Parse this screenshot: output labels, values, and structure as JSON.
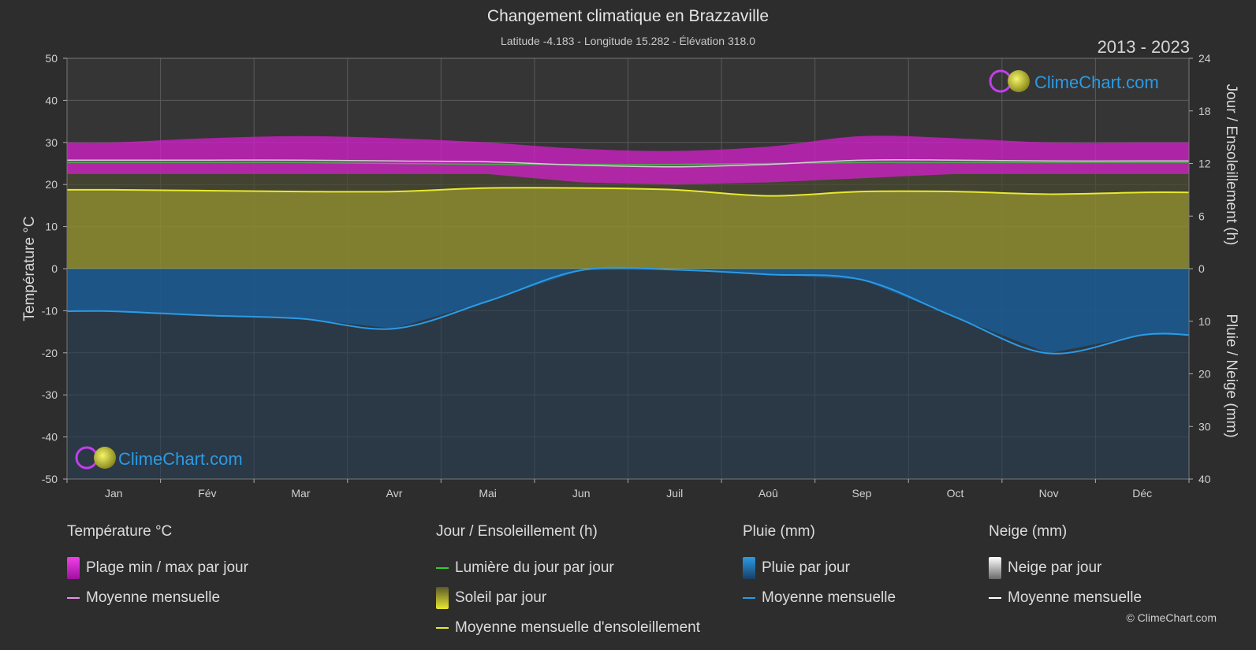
{
  "header": {
    "title": "Changement climatique en Brazzaville",
    "subtitle": "Latitude -4.183 - Longitude 15.282 - Élévation 318.0",
    "period": "2013 - 2023"
  },
  "axes": {
    "left_label": "Température °C",
    "right_top_label": "Jour / Ensoleillement (h)",
    "right_bottom_label": "Pluie / Neige (mm)"
  },
  "logo": {
    "text": "ClimeChart.com"
  },
  "legend": {
    "temperature": {
      "heading": "Température °C",
      "range": "Plage min / max par jour",
      "mean": "Moyenne mensuelle"
    },
    "sun": {
      "heading": "Jour / Ensoleillement (h)",
      "daylight": "Lumière du jour par jour",
      "sunshine": "Soleil par jour",
      "sun_mean": "Moyenne mensuelle d'ensoleillement"
    },
    "rain": {
      "heading": "Pluie (mm)",
      "rain_day": "Pluie par jour",
      "mean": "Moyenne mensuelle"
    },
    "snow": {
      "heading": "Neige (mm)",
      "snow_day": "Neige par jour",
      "mean": "Moyenne mensuelle"
    }
  },
  "copyright": "© ClimeChart.com",
  "colors": {
    "background": "#2d2d2d",
    "temp_range": "#d020c8",
    "temp_mean": "#e890e0",
    "daylight": "#33cc33",
    "sunshine_fill": "#8c8c2e",
    "sunshine_mean": "#e8e830",
    "rain_fill": "#1a5f9c",
    "rain_mean": "#2b9be6",
    "snow_mean": "#ffffff",
    "logo_text": "#2b9be6"
  },
  "chart_data": {
    "type": "area",
    "months": [
      "Jan",
      "Fév",
      "Mar",
      "Avr",
      "Mai",
      "Jun",
      "Juil",
      "Aoû",
      "Sep",
      "Oct",
      "Nov",
      "Déc"
    ],
    "temp_axis": {
      "ticks": [
        50,
        40,
        30,
        20,
        10,
        0,
        -10,
        -20,
        -30,
        -40,
        -50
      ],
      "ylim": [
        -50,
        50
      ]
    },
    "sun_axis": {
      "ticks": [
        24,
        18,
        12,
        6,
        0
      ],
      "ylim": [
        0,
        24
      ]
    },
    "rain_axis": {
      "ticks": [
        0,
        10,
        20,
        30,
        40
      ],
      "ylim": [
        0,
        40
      ]
    },
    "series": [
      {
        "name": "Plage min / max par jour",
        "min": [
          22.5,
          22.5,
          22.5,
          22.5,
          22.5,
          20.5,
          20.0,
          20.5,
          21.5,
          22.5,
          22.5,
          22.5
        ],
        "max": [
          30.0,
          31.0,
          31.5,
          31.0,
          30.0,
          28.5,
          28.0,
          29.0,
          31.5,
          31.0,
          30.0,
          30.0
        ]
      },
      {
        "name": "Moyenne mensuelle",
        "values": [
          25.8,
          25.8,
          25.8,
          25.6,
          25.4,
          24.6,
          24.2,
          24.8,
          25.8,
          25.8,
          25.6,
          25.6
        ]
      },
      {
        "name": "Lumière du jour par jour",
        "values": [
          12.1,
          12.1,
          12.1,
          12.0,
          11.9,
          11.9,
          11.9,
          12.0,
          12.1,
          12.1,
          12.1,
          12.1
        ]
      },
      {
        "name": "Moyenne mensuelle d'ensoleillement",
        "values": [
          9.0,
          8.9,
          8.8,
          8.8,
          9.2,
          9.2,
          9.0,
          8.3,
          8.8,
          8.8,
          8.5,
          8.7
        ]
      },
      {
        "name": "Moyenne mensuelle",
        "axis": "rain",
        "values": [
          8.1,
          8.9,
          9.5,
          11.4,
          6.2,
          0.3,
          0.2,
          1.1,
          2.1,
          9.2,
          16.1,
          12.6
        ]
      }
    ]
  }
}
